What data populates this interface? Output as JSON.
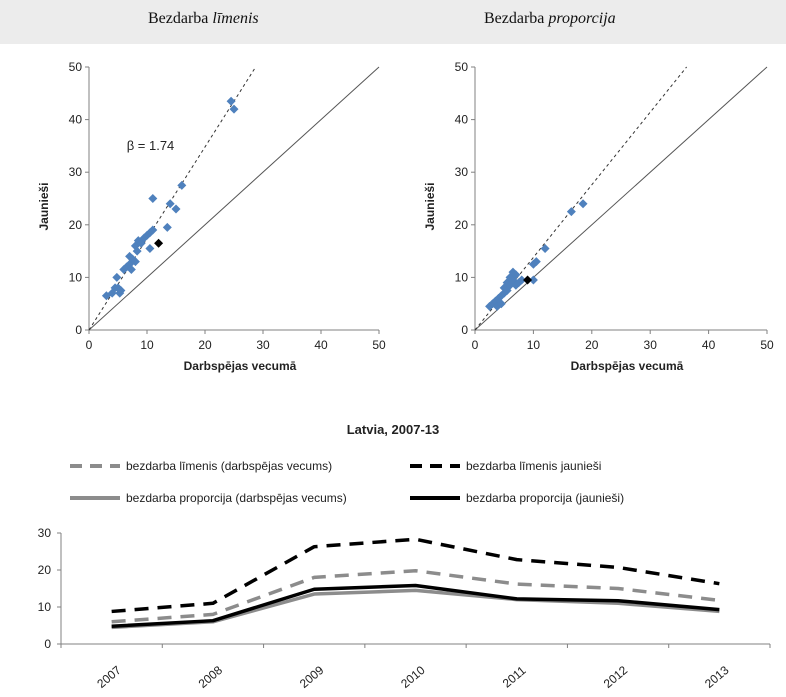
{
  "headings": {
    "left_prefix": "Bezdarba ",
    "left_italic": "līmenis",
    "right_prefix": "Bezdarba ",
    "right_italic": "proporcija"
  },
  "colors": {
    "background": "#ececec",
    "panel": "#ffffff",
    "scatter_marker": "#4f81bd",
    "latvia_marker": "#000000",
    "gray_series": "#8c8c8c",
    "black_series": "#000000"
  },
  "chart_data": [
    {
      "type": "scatter",
      "xlabel": "Darbspējas vecumā",
      "ylabel": "Jaunieši",
      "xlim": [
        0,
        50
      ],
      "ylim": [
        0,
        50
      ],
      "xticks": [
        "0",
        "10",
        "20",
        "30",
        "40",
        "50"
      ],
      "yticks": [
        "0",
        "10",
        "20",
        "30",
        "40",
        "50"
      ],
      "annotation": "β = 1.74",
      "fit_line": {
        "style": "dashed",
        "slope": 1.74
      },
      "reference_line": {
        "style": "solid",
        "slope": 1
      },
      "points": [
        [
          3,
          6.5
        ],
        [
          4,
          7
        ],
        [
          4.5,
          8
        ],
        [
          4.8,
          10
        ],
        [
          5,
          8
        ],
        [
          5.3,
          7
        ],
        [
          5.5,
          7.5
        ],
        [
          6,
          11.5
        ],
        [
          6.5,
          12
        ],
        [
          7,
          12.5
        ],
        [
          7,
          14
        ],
        [
          7.3,
          11.5
        ],
        [
          7.5,
          13.5
        ],
        [
          8,
          13
        ],
        [
          8,
          16
        ],
        [
          8.3,
          15
        ],
        [
          8.5,
          17
        ],
        [
          9,
          16.5
        ],
        [
          9.5,
          17.5
        ],
        [
          10,
          18
        ],
        [
          10.5,
          15.5
        ],
        [
          10.5,
          18.5
        ],
        [
          11,
          25
        ],
        [
          11,
          19
        ],
        [
          13.5,
          19.5
        ],
        [
          14,
          24
        ],
        [
          15,
          23
        ],
        [
          16,
          27.5
        ],
        [
          24.5,
          43.5
        ],
        [
          25,
          42
        ]
      ],
      "highlight_point": [
        12,
        16.5
      ]
    },
    {
      "type": "scatter",
      "xlabel": "Darbspējas vecumā",
      "ylabel": "Jaunieši",
      "xlim": [
        0,
        50
      ],
      "ylim": [
        0,
        50
      ],
      "xticks": [
        "0",
        "10",
        "20",
        "30",
        "40",
        "50"
      ],
      "yticks": [
        "0",
        "10",
        "20",
        "30",
        "40",
        "50"
      ],
      "fit_line": {
        "style": "dashed",
        "slope": 1.38
      },
      "reference_line": {
        "style": "solid",
        "slope": 1
      },
      "points": [
        [
          2.5,
          4.5
        ],
        [
          3,
          5
        ],
        [
          3.5,
          5.5
        ],
        [
          3.8,
          4.5
        ],
        [
          4,
          6
        ],
        [
          4.5,
          5
        ],
        [
          4.5,
          6.5
        ],
        [
          5,
          7
        ],
        [
          5,
          8
        ],
        [
          5.5,
          9
        ],
        [
          5.5,
          7.5
        ],
        [
          6,
          8.5
        ],
        [
          6,
          10
        ],
        [
          6.5,
          9.5
        ],
        [
          6.5,
          11
        ],
        [
          7,
          10.5
        ],
        [
          7,
          8.5
        ],
        [
          7.5,
          9
        ],
        [
          8,
          9.5
        ],
        [
          10,
          12.5
        ],
        [
          10.5,
          13
        ],
        [
          12,
          15.5
        ],
        [
          16.5,
          22.5
        ],
        [
          18.5,
          24
        ],
        [
          10,
          9.5
        ]
      ],
      "highlight_point": [
        9,
        9.5
      ]
    },
    {
      "type": "line",
      "title": "Latvia, 2007-13",
      "categories": [
        "2007",
        "2008",
        "2009",
        "2010",
        "2011",
        "2012",
        "2013"
      ],
      "ylim": [
        0,
        30
      ],
      "yticks": [
        "0",
        "10",
        "20",
        "30"
      ],
      "legend_position": "top",
      "series": [
        {
          "name": "bezdarba līmenis (darbspējas vecums)",
          "values": [
            6,
            8,
            18,
            19.8,
            16.2,
            15,
            11.8
          ],
          "color": "#8c8c8c",
          "dashed": true
        },
        {
          "name": "bezdarba līmenis jaunieši",
          "values": [
            8.8,
            11,
            26.3,
            28.3,
            22.8,
            20.7,
            16.3
          ],
          "color": "#000000",
          "dashed": true
        },
        {
          "name": "bezdarba proporcija (darbspējas vecums)",
          "values": [
            4.5,
            6,
            13.5,
            14.5,
            12,
            11,
            8.8
          ],
          "color": "#8c8c8c",
          "dashed": false
        },
        {
          "name": "bezdarba proporcija (jaunieši)",
          "values": [
            4.8,
            6.3,
            14.8,
            15.8,
            12.2,
            11.7,
            9.3
          ],
          "color": "#000000",
          "dashed": false
        }
      ]
    }
  ]
}
